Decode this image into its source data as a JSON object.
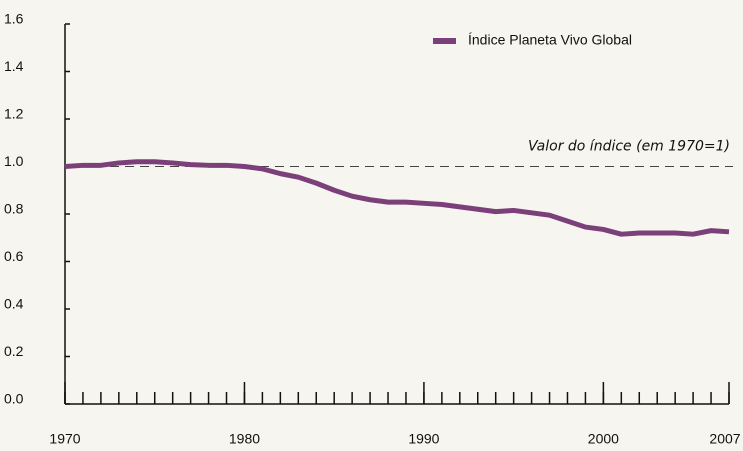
{
  "chart_data": {
    "type": "line",
    "x": [
      1970,
      1971,
      1972,
      1973,
      1974,
      1975,
      1976,
      1977,
      1978,
      1979,
      1980,
      1981,
      1982,
      1983,
      1984,
      1985,
      1986,
      1987,
      1988,
      1989,
      1990,
      1991,
      1992,
      1993,
      1994,
      1995,
      1996,
      1997,
      1998,
      1999,
      2000,
      2001,
      2002,
      2003,
      2004,
      2005,
      2006,
      2007
    ],
    "series": [
      {
        "name": "Índice Planeta Vivo Global",
        "color": "#7b3f7a",
        "values": [
          1.0,
          1.005,
          1.005,
          1.015,
          1.02,
          1.02,
          1.015,
          1.008,
          1.005,
          1.005,
          1.0,
          0.99,
          0.97,
          0.955,
          0.93,
          0.9,
          0.875,
          0.86,
          0.85,
          0.85,
          0.845,
          0.84,
          0.83,
          0.82,
          0.81,
          0.815,
          0.805,
          0.795,
          0.77,
          0.745,
          0.735,
          0.715,
          0.72,
          0.72,
          0.72,
          0.715,
          0.73,
          0.725
        ]
      }
    ],
    "xlim": [
      1970,
      2007
    ],
    "xticks": [
      1970,
      1980,
      1990,
      2000,
      2007
    ],
    "ylim": [
      0,
      1.6
    ],
    "yticks": [
      {
        "value": 0,
        "label": "0.0"
      },
      0.2,
      0.4,
      0.6,
      0.8,
      {
        "value": 1,
        "label": "1.0"
      },
      1.2,
      1.4,
      1.6
    ],
    "reference_line": {
      "value": 1,
      "label": "Valor do índice (em 1970=1)"
    },
    "legend": "top-right"
  }
}
